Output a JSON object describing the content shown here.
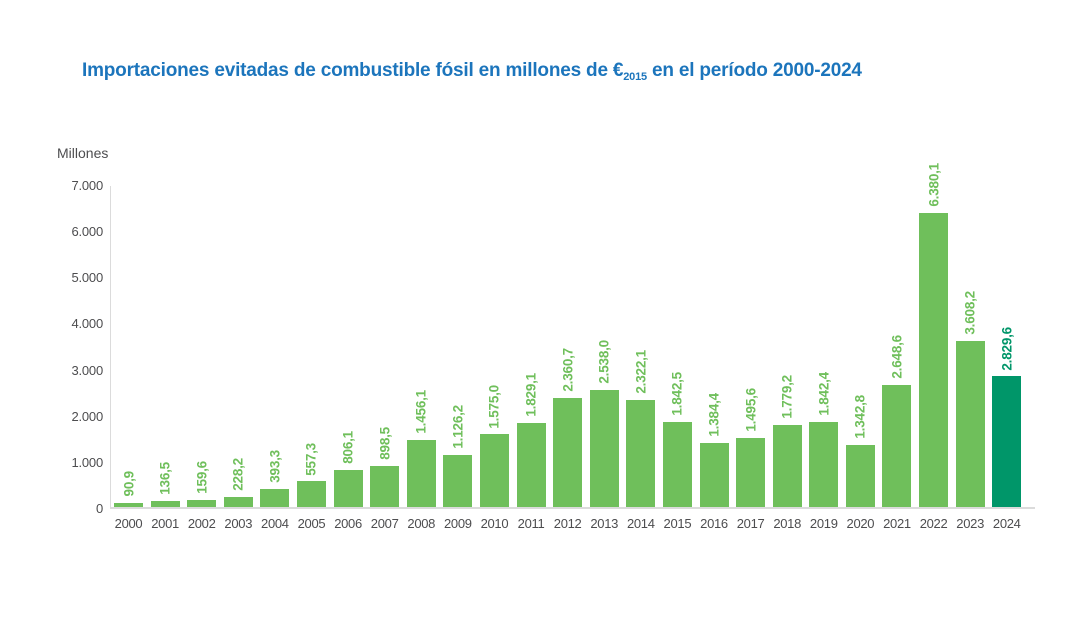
{
  "title": {
    "pre": "Importaciones evitadas de combustible fósil en millones de €",
    "subscript": "2015",
    "post": " en el período 2000-2024"
  },
  "y_axis": {
    "unit_label": "Millones",
    "ticks": [
      "7.000",
      "6.000",
      "5.000",
      "4.000",
      "3.000",
      "2.000",
      "1.000",
      "0"
    ]
  },
  "colors": {
    "title_blue": "#1C75BC",
    "axis_text_gray": "#4D4D4F",
    "axis_line_gray": "#DBDBDB",
    "bar_green": "#6FBF5B",
    "highlight_teal": "#009669"
  },
  "chart_data": {
    "type": "bar",
    "title": "Importaciones evitadas de combustible fósil en millones de €2015 en el período 2000-2024",
    "xlabel": "",
    "ylabel": "Millones",
    "ylim": [
      0,
      7000
    ],
    "grid": false,
    "legend": false,
    "bar_color": "#6FBF5B",
    "highlight_color": "#009669",
    "highlight_index": 24,
    "categories": [
      "2000",
      "2001",
      "2002",
      "2003",
      "2004",
      "2005",
      "2006",
      "2007",
      "2008",
      "2009",
      "2010",
      "2011",
      "2012",
      "2013",
      "2014",
      "2015",
      "2016",
      "2017",
      "2018",
      "2019",
      "2020",
      "2021",
      "2022",
      "2023",
      "2024"
    ],
    "values": [
      90.9,
      136.5,
      159.6,
      228.2,
      393.3,
      557.3,
      806.1,
      898.5,
      1456.1,
      1126.2,
      1575.0,
      1829.1,
      2360.7,
      2538.0,
      2322.1,
      1842.5,
      1384.4,
      1495.6,
      1779.2,
      1842.4,
      1342.8,
      2648.6,
      6380.1,
      3608.2,
      2829.6
    ],
    "value_labels": [
      "90,9",
      "136,5",
      "159,6",
      "228,2",
      "393,3",
      "557,3",
      "806,1",
      "898,5",
      "1.456,1",
      "1.126,2",
      "1.575,0",
      "1.829,1",
      "2.360,7",
      "2.538,0",
      "2.322,1",
      "1.842,5",
      "1.384,4",
      "1.495,6",
      "1.779,2",
      "1.842,4",
      "1.342,8",
      "2.648,6",
      "6.380,1",
      "3.608,2",
      "2.829,6"
    ]
  }
}
